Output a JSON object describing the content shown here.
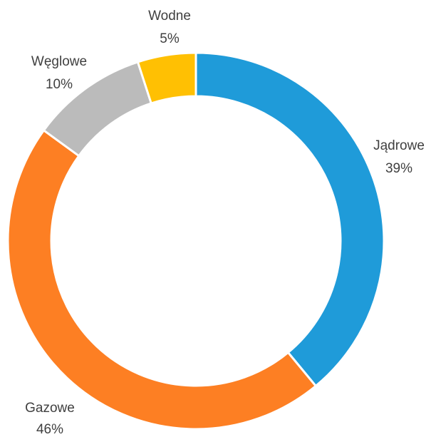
{
  "chart_data": {
    "type": "pie",
    "variant": "donut",
    "title": "",
    "legend": "none",
    "series": [
      {
        "name": "",
        "values": [
          {
            "category": "Jądrowe",
            "value": 39,
            "label": "39%",
            "color": "#1F9BD9"
          },
          {
            "category": "Gazowe",
            "value": 46,
            "label": "46%",
            "color": "#FD7F23"
          },
          {
            "category": "Węglowe",
            "value": 10,
            "label": "10%",
            "color": "#BBBBBB"
          },
          {
            "category": "Wodne",
            "value": 5,
            "label": "5%",
            "color": "#FFC003"
          }
        ]
      }
    ]
  }
}
